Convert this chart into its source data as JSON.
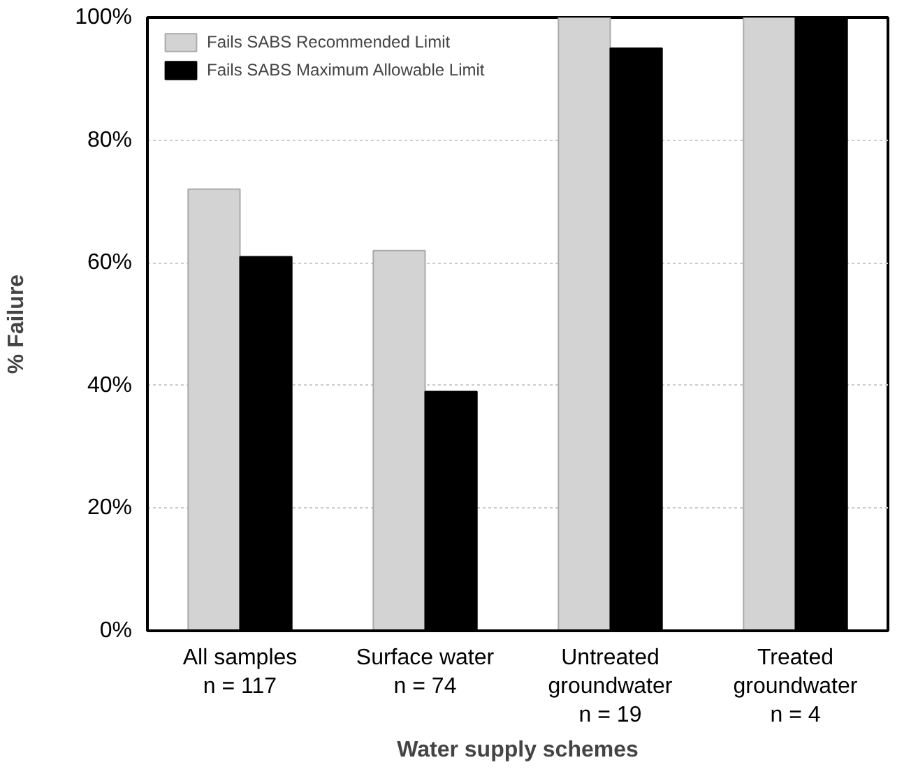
{
  "chart_data": {
    "type": "bar",
    "xlabel": "Water supply schemes",
    "ylabel": "% Failure",
    "categories": [
      "All samples\nn = 117",
      "Surface water\nn = 74",
      "Untreated\ngroundwater\nn = 19",
      "Treated\ngroundwater\nn = 4"
    ],
    "series": [
      {
        "name": "Fails SABS Recommended Limit",
        "color": "#d3d3d3",
        "values": [
          72,
          62,
          100,
          100
        ]
      },
      {
        "name": "Fails SABS Maximum Allowable Limit",
        "color": "#000000",
        "values": [
          61,
          39,
          95,
          100
        ]
      }
    ],
    "ylim": [
      0,
      100
    ],
    "yticks": [
      {
        "value": 0,
        "label": "0%"
      },
      {
        "value": 20,
        "label": "20%"
      },
      {
        "value": 40,
        "label": "40%"
      },
      {
        "value": 60,
        "label": "60%"
      },
      {
        "value": 80,
        "label": "80%"
      },
      {
        "value": 100,
        "label": "100%"
      }
    ],
    "grid": "y",
    "legend": "top left"
  }
}
